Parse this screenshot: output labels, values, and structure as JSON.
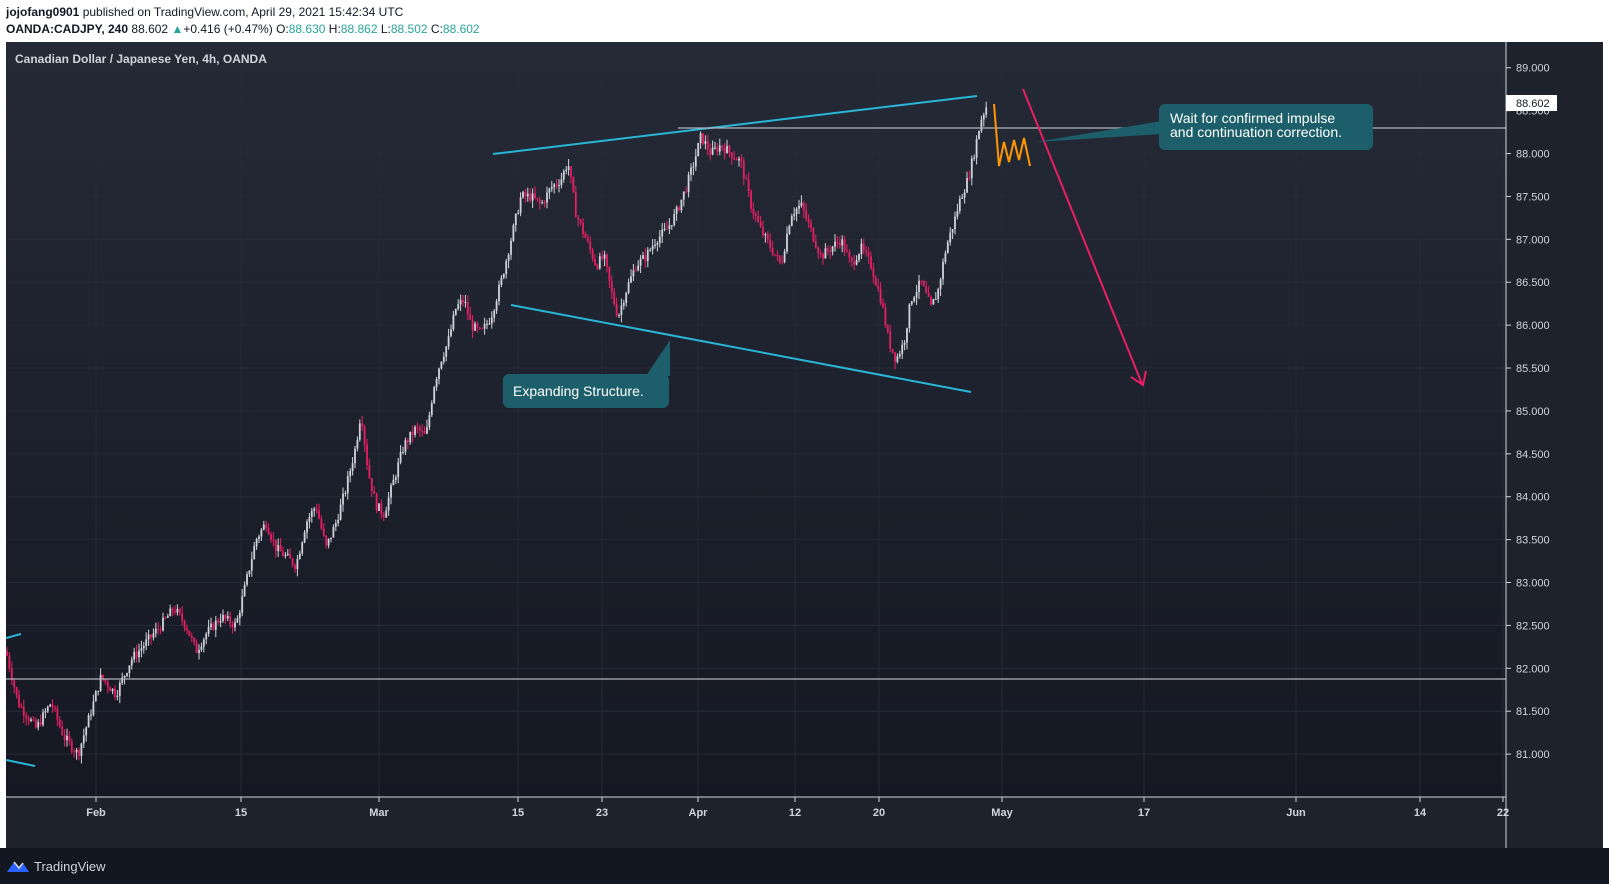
{
  "header": {
    "author": "jojofang0901",
    "published": " published on TradingView.com, April 29, 2021 15:42:34 UTC",
    "symbol": "OANDA:CADJPY, 240",
    "last": "88.602",
    "change": "+0.416 (+0.47%)",
    "o_label": "O:",
    "o_val": "88.630",
    "h_label": "H:",
    "h_val": "88.862",
    "l_label": "L:",
    "l_val": "88.502",
    "c_label": "C:",
    "c_val": "88.602"
  },
  "footer": {
    "brand": "TradingView"
  },
  "colors": {
    "background": "#1e222d",
    "grid": "#262a36",
    "text": "#d1d4dc",
    "up": "#d1d4dc",
    "down": "#e91e63",
    "trendline": "#29b6d6",
    "hline": "#b2b5be",
    "projection": "#ff9800",
    "arrow": "#e91e63",
    "callout": "#1c5f6a"
  },
  "chart_data": {
    "type": "candlestick",
    "title": "Canadian Dollar / Japanese Yen, 4h, OANDA",
    "ylim": [
      80.5,
      89.3
    ],
    "yticks": [
      "89.000",
      "88.500",
      "88.000",
      "87.500",
      "87.000",
      "86.500",
      "86.000",
      "85.500",
      "85.000",
      "84.500",
      "84.000",
      "83.500",
      "83.000",
      "82.500",
      "82.000",
      "81.500",
      "81.000"
    ],
    "xticks": [
      "Feb",
      "15",
      "Mar",
      "15",
      "23",
      "Apr",
      "12",
      "20",
      "May",
      "17",
      "Jun",
      "14",
      "22"
    ],
    "current_price": "88.602",
    "path": [
      [
        0,
        82.2
      ],
      [
        12,
        81.6
      ],
      [
        30,
        81.3
      ],
      [
        45,
        81.6
      ],
      [
        58,
        81.2
      ],
      [
        72,
        81.0
      ],
      [
        85,
        81.5
      ],
      [
        95,
        81.9
      ],
      [
        110,
        81.7
      ],
      [
        125,
        82.1
      ],
      [
        140,
        82.3
      ],
      [
        155,
        82.5
      ],
      [
        168,
        82.7
      ],
      [
        180,
        82.5
      ],
      [
        190,
        82.2
      ],
      [
        200,
        82.4
      ],
      [
        215,
        82.6
      ],
      [
        230,
        82.5
      ],
      [
        240,
        83.0
      ],
      [
        250,
        83.5
      ],
      [
        260,
        83.7
      ],
      [
        270,
        83.4
      ],
      [
        280,
        83.3
      ],
      [
        290,
        83.2
      ],
      [
        300,
        83.7
      ],
      [
        310,
        83.9
      ],
      [
        320,
        83.4
      ],
      [
        330,
        83.7
      ],
      [
        340,
        84.1
      ],
      [
        350,
        84.6
      ],
      [
        355,
        85.0
      ],
      [
        362,
        84.3
      ],
      [
        370,
        83.9
      ],
      [
        378,
        83.8
      ],
      [
        388,
        84.2
      ],
      [
        398,
        84.6
      ],
      [
        410,
        84.8
      ],
      [
        420,
        84.7
      ],
      [
        428,
        85.3
      ],
      [
        435,
        85.6
      ],
      [
        442,
        85.8
      ],
      [
        450,
        86.2
      ],
      [
        458,
        86.3
      ],
      [
        465,
        86.0
      ],
      [
        475,
        85.9
      ],
      [
        485,
        86.1
      ],
      [
        495,
        86.5
      ],
      [
        505,
        87.0
      ],
      [
        515,
        87.5
      ],
      [
        525,
        87.5
      ],
      [
        535,
        87.4
      ],
      [
        545,
        87.6
      ],
      [
        555,
        87.7
      ],
      [
        562,
        87.9
      ],
      [
        570,
        87.3
      ],
      [
        580,
        87.0
      ],
      [
        590,
        86.7
      ],
      [
        598,
        86.8
      ],
      [
        605,
        86.4
      ],
      [
        612,
        86.1
      ],
      [
        620,
        86.4
      ],
      [
        630,
        86.7
      ],
      [
        640,
        86.8
      ],
      [
        650,
        87.0
      ],
      [
        660,
        87.1
      ],
      [
        670,
        87.3
      ],
      [
        680,
        87.6
      ],
      [
        688,
        87.9
      ],
      [
        695,
        88.2
      ],
      [
        705,
        88.0
      ],
      [
        715,
        88.1
      ],
      [
        725,
        88.0
      ],
      [
        735,
        87.9
      ],
      [
        745,
        87.4
      ],
      [
        755,
        87.1
      ],
      [
        765,
        86.9
      ],
      [
        775,
        86.7
      ],
      [
        785,
        87.3
      ],
      [
        795,
        87.4
      ],
      [
        805,
        87.1
      ],
      [
        815,
        86.8
      ],
      [
        825,
        86.9
      ],
      [
        835,
        87.0
      ],
      [
        845,
        86.7
      ],
      [
        855,
        86.9
      ],
      [
        865,
        86.7
      ],
      [
        875,
        86.3
      ],
      [
        883,
        85.8
      ],
      [
        890,
        85.6
      ],
      [
        898,
        85.8
      ],
      [
        905,
        86.3
      ],
      [
        915,
        86.5
      ],
      [
        925,
        86.2
      ],
      [
        932,
        86.4
      ],
      [
        940,
        86.9
      ],
      [
        948,
        87.2
      ],
      [
        955,
        87.5
      ],
      [
        962,
        87.7
      ],
      [
        968,
        88.0
      ],
      [
        975,
        88.4
      ],
      [
        982,
        88.6
      ]
    ]
  },
  "annotations": {
    "upper_callout": [
      "Wait for confirmed impulse",
      "and continuation correction."
    ],
    "lower_callout": "Expanding Structure."
  }
}
